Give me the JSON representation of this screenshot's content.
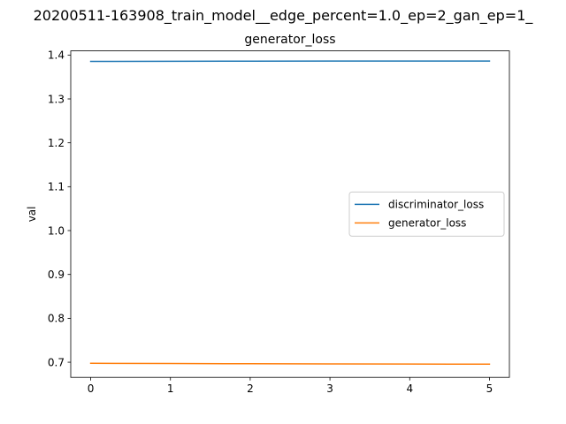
{
  "suptitle": "20200511-163908_train_model__edge_percent=1.0_ep=2_gan_ep=1_",
  "chart_data": {
    "type": "line",
    "title": "generator_loss",
    "xlabel": "",
    "ylabel": "val",
    "xlim": [
      -0.25,
      5.25
    ],
    "ylim": [
      0.6655,
      1.4095
    ],
    "xticks": [
      0,
      1,
      2,
      3,
      4,
      5
    ],
    "xtick_labels": [
      "0",
      "1",
      "2",
      "3",
      "4",
      "5"
    ],
    "yticks": [
      0.7,
      0.8,
      0.9,
      1.0,
      1.1,
      1.2,
      1.3,
      1.4
    ],
    "ytick_labels": [
      "0.7",
      "0.8",
      "0.9",
      "1.0",
      "1.1",
      "1.2",
      "1.3",
      "1.4"
    ],
    "grid": false,
    "legend_position": "center-right",
    "x": [
      0,
      1,
      2,
      3,
      4,
      5
    ],
    "series": [
      {
        "name": "discriminator_loss",
        "color": "#1f77b4",
        "values": [
          1.3855,
          1.3858,
          1.386,
          1.3863,
          1.3864,
          1.3864
        ]
      },
      {
        "name": "generator_loss",
        "color": "#ff7f0e",
        "values": [
          0.6975,
          0.697,
          0.6965,
          0.6962,
          0.6958,
          0.6955
        ]
      }
    ]
  }
}
